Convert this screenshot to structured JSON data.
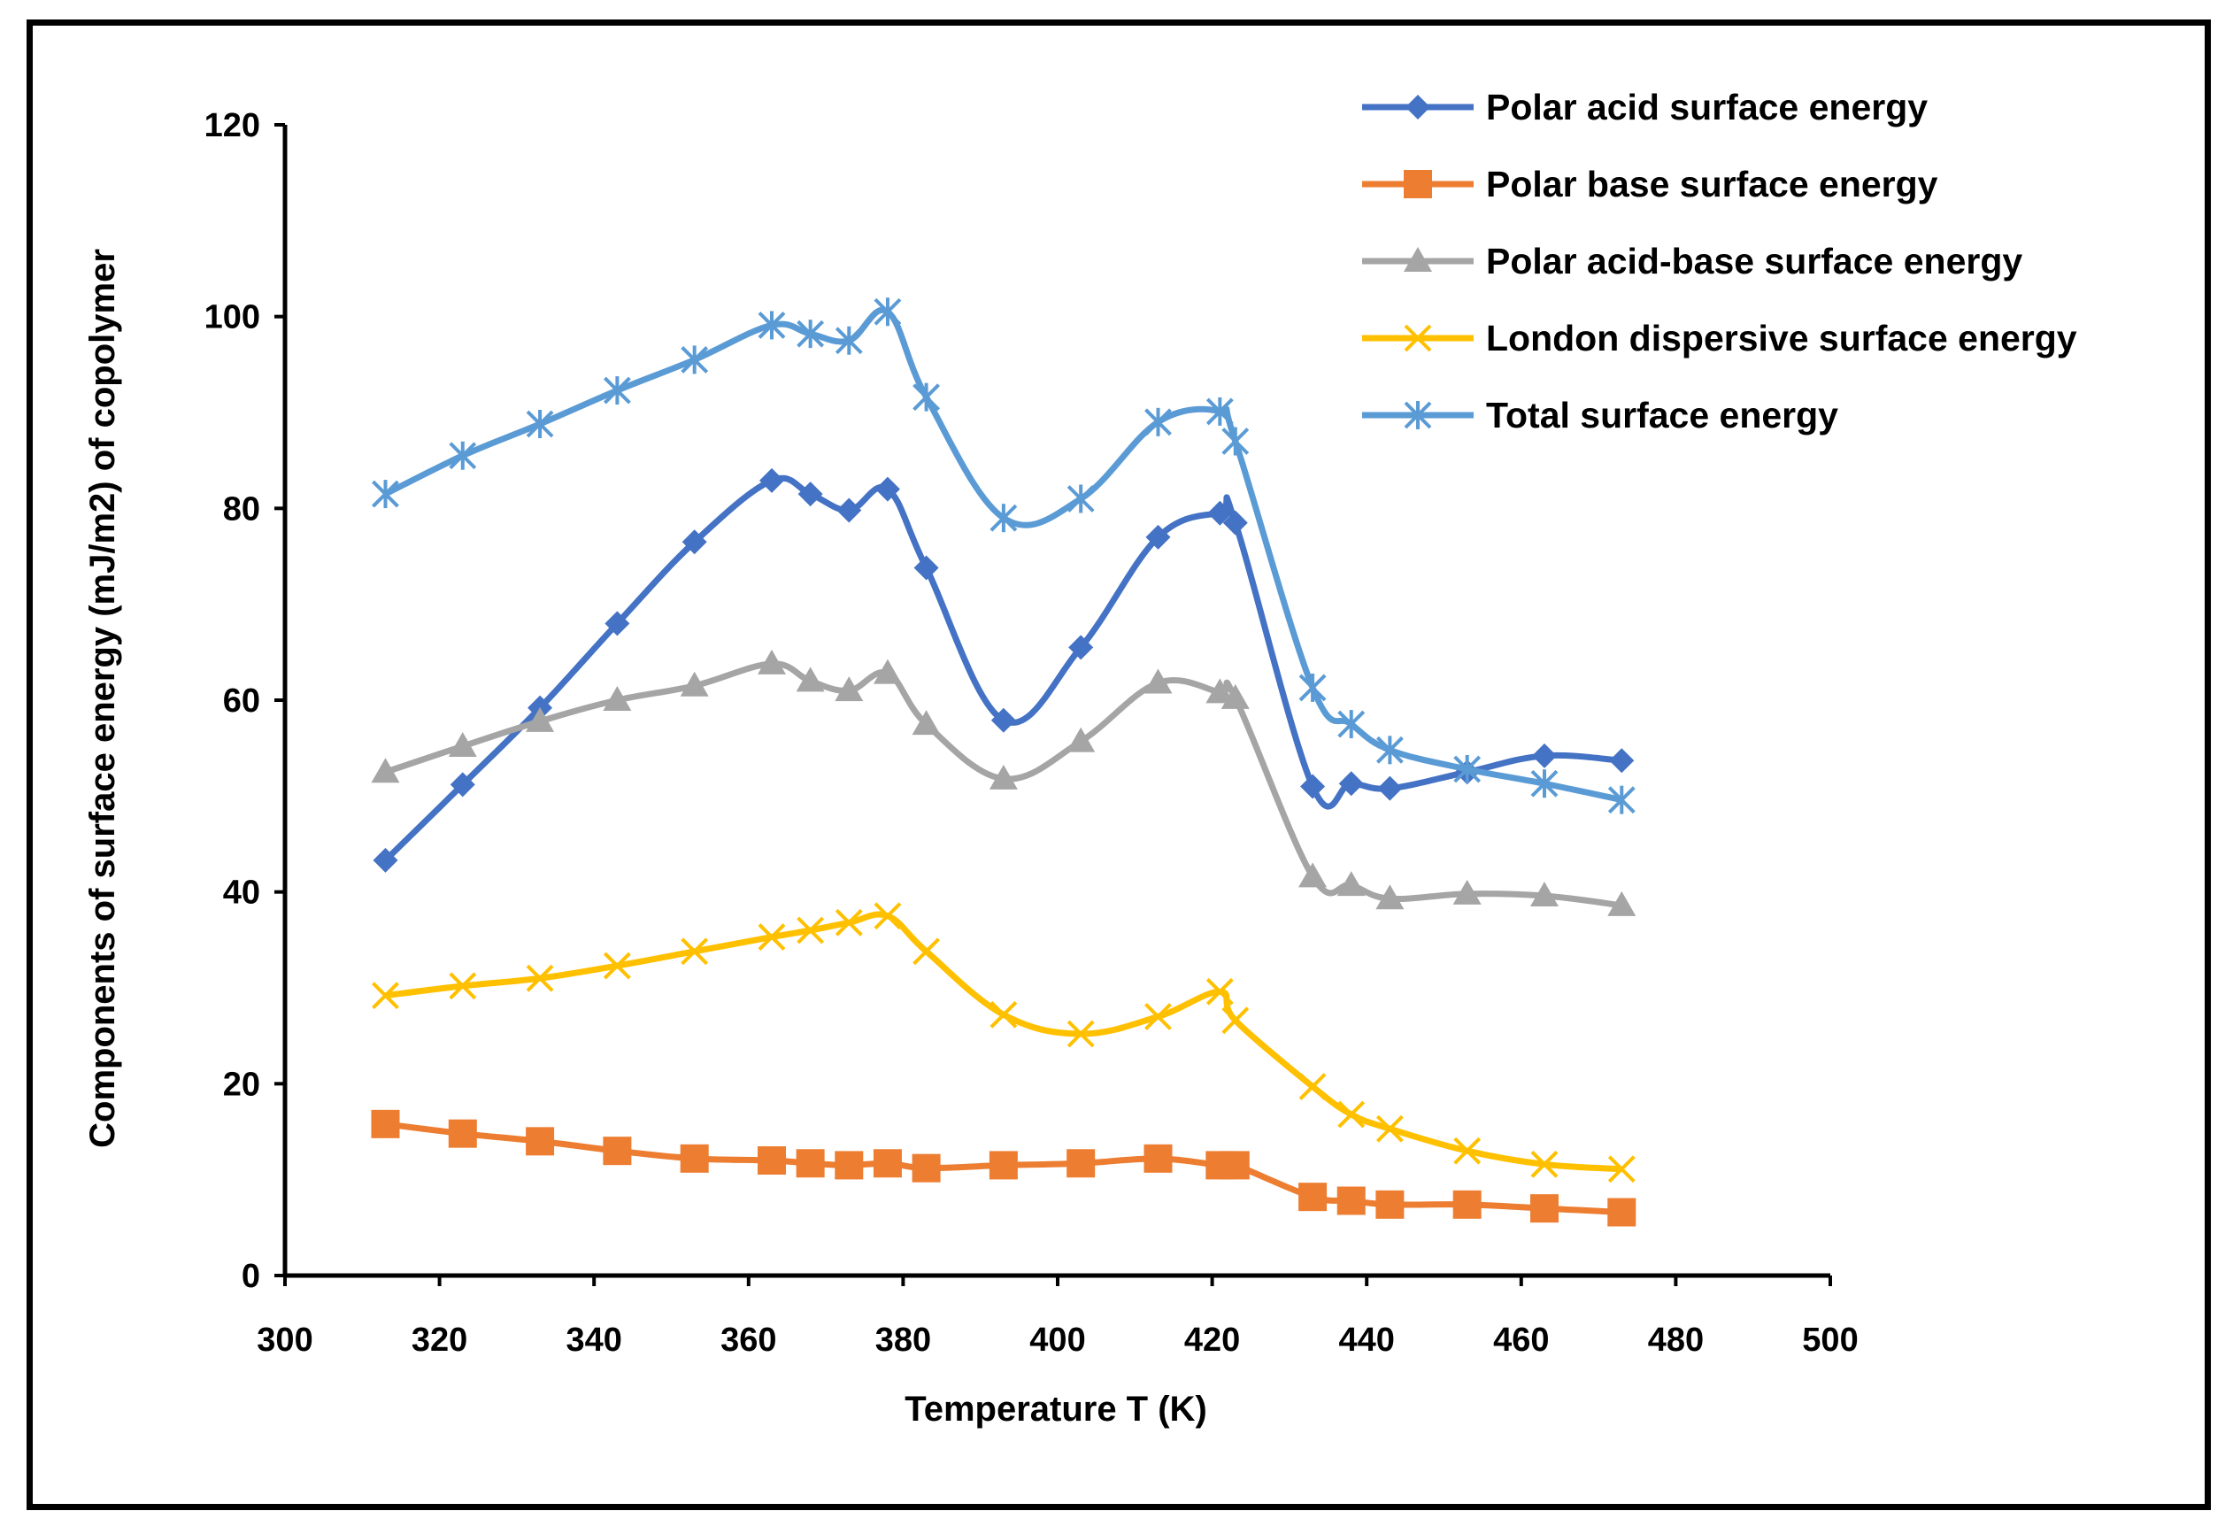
{
  "chart_data": {
    "type": "line",
    "xlabel": "Temperature T (K)",
    "ylabel": "Components of surface energy (mJ/m2) of copolymer",
    "xlim": [
      300,
      500
    ],
    "ylim": [
      0,
      120
    ],
    "x_ticks": [
      300,
      320,
      340,
      360,
      380,
      400,
      420,
      440,
      460,
      480,
      500
    ],
    "y_ticks": [
      0,
      20,
      40,
      60,
      80,
      100,
      120
    ],
    "grid": false,
    "smooth": true,
    "legend_position": "top-right",
    "x": [
      313,
      323,
      333,
      343,
      353,
      363,
      368,
      373,
      378,
      383,
      393,
      403,
      413,
      421,
      423,
      433,
      438,
      443,
      453,
      463,
      473
    ],
    "series": [
      {
        "name": "Polar acid surface energy",
        "color": "#4472C4",
        "marker": "diamond",
        "values": [
          43.3,
          51.2,
          59.2,
          68.0,
          76.5,
          82.9,
          81.5,
          79.8,
          82.0,
          73.8,
          57.9,
          65.5,
          77.0,
          79.5,
          78.5,
          51.0,
          51.3,
          50.8,
          52.5,
          54.2,
          53.7
        ]
      },
      {
        "name": "Polar base surface energy",
        "color": "#ED7D31",
        "marker": "square",
        "values": [
          15.8,
          14.8,
          14.0,
          13.0,
          12.2,
          12.0,
          11.7,
          11.5,
          11.7,
          11.2,
          11.5,
          11.7,
          12.2,
          11.5,
          11.5,
          8.2,
          7.8,
          7.4,
          7.4,
          7.0,
          6.6
        ]
      },
      {
        "name": "Polar acid-base surface energy",
        "color": "#A5A5A5",
        "marker": "triangle",
        "values": [
          52.5,
          55.2,
          57.8,
          60.0,
          61.5,
          63.8,
          62.0,
          61.0,
          62.8,
          57.5,
          51.8,
          55.7,
          61.8,
          60.8,
          60.2,
          41.6,
          40.7,
          39.3,
          39.8,
          39.6,
          38.6
        ]
      },
      {
        "name": "London dispersive surface energy",
        "color": "#FFC000",
        "marker": "x",
        "values": [
          29.2,
          30.2,
          31.0,
          32.3,
          33.8,
          35.3,
          36.0,
          36.8,
          37.5,
          33.8,
          27.2,
          25.2,
          27.0,
          29.6,
          26.6,
          19.7,
          16.8,
          15.3,
          13.0,
          11.6,
          11.1
        ]
      },
      {
        "name": "Total surface energy",
        "color": "#5B9BD5",
        "marker": "asterisk",
        "values": [
          81.5,
          85.5,
          88.8,
          92.3,
          95.5,
          99.1,
          98.2,
          97.5,
          100.5,
          91.6,
          79.0,
          81.0,
          89.0,
          90.1,
          87.0,
          61.3,
          57.5,
          54.8,
          52.8,
          51.3,
          49.6
        ]
      }
    ]
  }
}
